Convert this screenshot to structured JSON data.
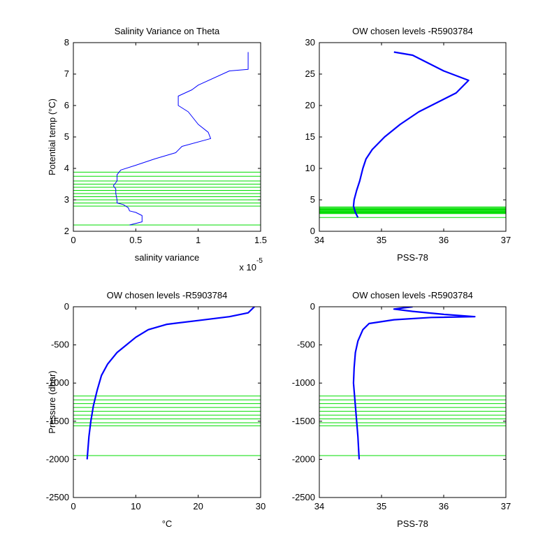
{
  "colors": {
    "series": "#0000ff",
    "levels": "#00dd00",
    "axes": "#000000",
    "background": "#ffffff"
  },
  "chart_data": [
    {
      "type": "line",
      "title": "Salinity Variance on Theta",
      "xlabel": "salinity variance",
      "x_multiplier_label": "x 10",
      "x_multiplier_exponent": "-5",
      "ylabel": "Potential temp (°C)",
      "xlim": [
        0,
        1.5
      ],
      "ylim": [
        2,
        8
      ],
      "xticks": [
        "0",
        "0.5",
        "1",
        "1.5"
      ],
      "yticks": [
        "2",
        "3",
        "4",
        "5",
        "6",
        "7",
        "8"
      ],
      "grid": false,
      "series": [
        {
          "points": [
            [
              0.45,
              2.2
            ],
            [
              0.55,
              2.3
            ],
            [
              0.55,
              2.5
            ],
            [
              0.5,
              2.6
            ],
            [
              0.45,
              2.65
            ],
            [
              0.44,
              2.75
            ],
            [
              0.4,
              2.85
            ],
            [
              0.35,
              2.9
            ],
            [
              0.35,
              3.0
            ],
            [
              0.34,
              3.2
            ],
            [
              0.34,
              3.35
            ],
            [
              0.32,
              3.45
            ],
            [
              0.35,
              3.6
            ],
            [
              0.35,
              3.8
            ],
            [
              0.38,
              3.95
            ],
            [
              0.5,
              4.1
            ],
            [
              0.65,
              4.3
            ],
            [
              0.82,
              4.5
            ],
            [
              0.87,
              4.7
            ],
            [
              1.1,
              4.95
            ],
            [
              1.08,
              5.15
            ],
            [
              1.0,
              5.4
            ],
            [
              0.92,
              5.8
            ],
            [
              0.84,
              6.0
            ],
            [
              0.84,
              6.3
            ],
            [
              0.95,
              6.5
            ],
            [
              1.0,
              6.65
            ],
            [
              1.25,
              7.1
            ],
            [
              1.4,
              7.15
            ],
            [
              1.4,
              7.7
            ]
          ]
        }
      ],
      "levels": [
        2.2,
        2.8,
        2.9,
        3.0,
        3.1,
        3.2,
        3.3,
        3.4,
        3.5,
        3.6,
        3.75,
        3.88
      ]
    },
    {
      "type": "line",
      "title": "OW chosen levels -R5903784",
      "xlabel": "PSS-78",
      "ylabel": "",
      "xlim": [
        34,
        37
      ],
      "ylim": [
        0,
        30
      ],
      "xticks": [
        "34",
        "35",
        "36",
        "37"
      ],
      "yticks": [
        "0",
        "5",
        "10",
        "15",
        "20",
        "25",
        "30"
      ],
      "grid": false,
      "series": [
        {
          "points": [
            [
              34.62,
              2.2
            ],
            [
              34.58,
              3
            ],
            [
              34.55,
              4
            ],
            [
              34.56,
              5
            ],
            [
              34.6,
              6.5
            ],
            [
              34.65,
              8
            ],
            [
              34.7,
              10
            ],
            [
              34.75,
              11.5
            ],
            [
              34.85,
              13
            ],
            [
              35.05,
              15
            ],
            [
              35.3,
              17
            ],
            [
              35.6,
              19
            ],
            [
              35.9,
              20.5
            ],
            [
              36.2,
              22
            ],
            [
              36.4,
              24
            ],
            [
              36.0,
              25.5
            ],
            [
              35.7,
              27
            ],
            [
              35.5,
              28
            ],
            [
              35.2,
              28.5
            ]
          ]
        }
      ],
      "levels": [
        2.2,
        2.8,
        2.9,
        3.0,
        3.1,
        3.2,
        3.3,
        3.4,
        3.5,
        3.6,
        3.75,
        3.88
      ]
    },
    {
      "type": "line",
      "title": "OW chosen levels -R5903784",
      "xlabel": "°C",
      "ylabel": "Pressure (dbar)",
      "xlim": [
        0,
        30
      ],
      "ylim": [
        -2500,
        0
      ],
      "xticks": [
        "0",
        "10",
        "20",
        "30"
      ],
      "yticks": [
        "-2500",
        "-2000",
        "-1500",
        "-1000",
        "-500",
        "0"
      ],
      "grid": false,
      "series": [
        {
          "points": [
            [
              2.2,
              -2000
            ],
            [
              2.5,
              -1700
            ],
            [
              2.8,
              -1500
            ],
            [
              3.2,
              -1300
            ],
            [
              3.8,
              -1100
            ],
            [
              4.5,
              -900
            ],
            [
              5.5,
              -750
            ],
            [
              7,
              -600
            ],
            [
              8.5,
              -500
            ],
            [
              10,
              -400
            ],
            [
              12,
              -300
            ],
            [
              15,
              -230
            ],
            [
              20,
              -180
            ],
            [
              25,
              -130
            ],
            [
              28,
              -80
            ],
            [
              29,
              0
            ]
          ]
        }
      ],
      "levels": [
        -1950,
        -1560,
        -1520,
        -1470,
        -1420,
        -1370,
        -1320,
        -1270,
        -1220,
        -1170
      ]
    },
    {
      "type": "line",
      "title": "OW chosen levels -R5903784",
      "xlabel": "PSS-78",
      "ylabel": "",
      "xlim": [
        34,
        37
      ],
      "ylim": [
        -2500,
        0
      ],
      "xticks": [
        "34",
        "35",
        "36",
        "37"
      ],
      "yticks": [
        "-2500",
        "-2000",
        "-1500",
        "-1000",
        "-500",
        "0"
      ],
      "grid": false,
      "series": [
        {
          "points": [
            [
              34.64,
              -2000
            ],
            [
              34.62,
              -1700
            ],
            [
              34.6,
              -1500
            ],
            [
              34.57,
              -1200
            ],
            [
              34.55,
              -1000
            ],
            [
              34.56,
              -800
            ],
            [
              34.58,
              -600
            ],
            [
              34.62,
              -450
            ],
            [
              34.7,
              -300
            ],
            [
              34.8,
              -220
            ],
            [
              35.2,
              -170
            ],
            [
              35.8,
              -140
            ],
            [
              36.5,
              -130
            ],
            [
              36.0,
              -100
            ],
            [
              35.5,
              -60
            ],
            [
              35.2,
              -30
            ],
            [
              35.5,
              0
            ]
          ]
        }
      ],
      "levels": [
        -1950,
        -1560,
        -1520,
        -1470,
        -1420,
        -1370,
        -1320,
        -1270,
        -1220,
        -1170
      ]
    }
  ]
}
